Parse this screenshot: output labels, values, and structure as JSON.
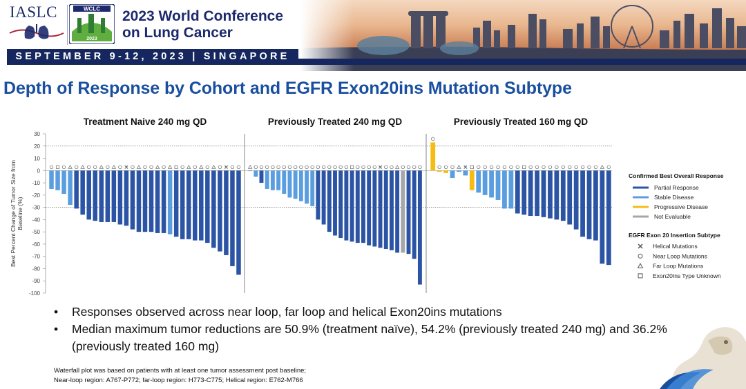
{
  "header": {
    "org": "IASLC",
    "conference_title_line1": "2023 World Conference",
    "conference_title_line2": "on Lung Cancer",
    "dates": "SEPTEMBER 9-12, 2023 | SINGAPORE",
    "wclc_logo_text": "WCLC",
    "wclc_logo_year": "2023"
  },
  "slide": {
    "title": "Depth of Response by Cohort and EGFR Exon20ins Mutation Subtype"
  },
  "colors": {
    "partial_response": "#2b54a4",
    "stable_disease": "#5a9ee0",
    "progressive_disease": "#f6bc14",
    "not_evaluable": "#a7a7a7",
    "title_blue": "#1a4fa0",
    "navy": "#15275e"
  },
  "chart_data": {
    "type": "bar",
    "ylabel": "Best Percent Change of Tumor Size from Baseline (%)",
    "ylim": [
      -100,
      30
    ],
    "yticks": [
      30,
      20,
      10,
      0,
      -10,
      -20,
      -30,
      -40,
      -50,
      -60,
      -70,
      -80,
      -90,
      -100
    ],
    "reference_lines": [
      20,
      -30
    ],
    "legend_position": "right",
    "legend": {
      "response_title": "Confirmed Best Overall Response",
      "response_items": [
        {
          "label": "Partial Response",
          "key": "PR"
        },
        {
          "label": "Stable Disease",
          "key": "SD"
        },
        {
          "label": "Progressive Disease",
          "key": "PD"
        },
        {
          "label": "Not Evaluable",
          "key": "NE"
        }
      ],
      "subtype_title": "EGFR Exon 20 Insertion Subtype",
      "subtype_items": [
        {
          "label": "Helical Mutations",
          "marker": "x"
        },
        {
          "label": "Near Loop Mutations",
          "marker": "o"
        },
        {
          "label": "Far Loop Mutations",
          "marker": "t"
        },
        {
          "label": "Exon20Ins Type Unknown",
          "marker": "s"
        }
      ]
    },
    "panels": [
      {
        "title": "Treatment Naive 240 mg QD",
        "values": [
          -15,
          -16,
          -19,
          -28,
          -31,
          -36,
          -40,
          -41,
          -42,
          -42,
          -42,
          -44,
          -45,
          -48,
          -50,
          -50,
          -50,
          -51,
          -51,
          -52,
          -54,
          -56,
          -56,
          -57,
          -57,
          -59,
          -63,
          -66,
          -69,
          -78,
          -85
        ],
        "responses": [
          "SD",
          "SD",
          "SD",
          "SD",
          "PR",
          "PR",
          "PR",
          "PR",
          "PR",
          "PR",
          "PR",
          "PR",
          "PR",
          "PR",
          "PR",
          "PR",
          "PR",
          "PR",
          "PR",
          "SD",
          "PR",
          "PR",
          "PR",
          "PR",
          "PR",
          "PR",
          "PR",
          "PR",
          "PR",
          "PR",
          "PR"
        ],
        "markers": [
          "o",
          "s",
          "o",
          "t",
          "o",
          "t",
          "o",
          "o",
          "t",
          "o",
          "t",
          "o",
          "x",
          "o",
          "t",
          "o",
          "o",
          "t",
          "o",
          "t",
          "s",
          "o",
          "t",
          "o",
          "t",
          "o",
          "t",
          "o",
          "x",
          "o",
          "o"
        ]
      },
      {
        "title": "Previously Treated 240 mg QD",
        "values": [
          0,
          -5,
          -10,
          -15,
          -16,
          -16,
          -19,
          -22,
          -23,
          -25,
          -27,
          -29,
          -40,
          -44,
          -50,
          -53,
          -55,
          -57,
          -58,
          -59,
          -59,
          -61,
          -62,
          -63,
          -64,
          -65,
          -67,
          -67,
          -68,
          -72,
          -93
        ],
        "responses": [
          "SD",
          "SD",
          "PR",
          "SD",
          "SD",
          "SD",
          "SD",
          "SD",
          "SD",
          "SD",
          "SD",
          "SD",
          "PR",
          "PR",
          "PR",
          "PR",
          "PR",
          "PR",
          "PR",
          "PR",
          "PR",
          "PR",
          "PR",
          "PR",
          "PR",
          "PR",
          "PR",
          "NE",
          "PR",
          "PR",
          "PR"
        ],
        "markers": [
          "t",
          "o",
          "o",
          "o",
          "o",
          "o",
          "o",
          "o",
          "o",
          "o",
          "o",
          "o",
          "o",
          "o",
          "o",
          "o",
          "o",
          "o",
          "s",
          "o",
          "o",
          "o",
          "o",
          "x",
          "o",
          "o",
          "t",
          "o",
          "o",
          "o",
          "o"
        ]
      },
      {
        "title": "Previously Treated 160 mg QD",
        "values": [
          23,
          -1,
          -2,
          -6,
          -1,
          -4,
          -16,
          -18,
          -20,
          -22,
          -24,
          -31,
          -31,
          -35,
          -36,
          -37,
          -37,
          -38,
          -39,
          -40,
          -41,
          -44,
          -48,
          -54,
          -56,
          -57,
          -76,
          -77
        ],
        "responses": [
          "PD",
          "PD",
          "PD",
          "SD",
          "SD",
          "SD",
          "PD",
          "SD",
          "SD",
          "SD",
          "SD",
          "SD",
          "SD",
          "PR",
          "PR",
          "PR",
          "PR",
          "PR",
          "PR",
          "PR",
          "PR",
          "PR",
          "PR",
          "PR",
          "PR",
          "PR",
          "PR",
          "PR"
        ],
        "markers": [
          "o",
          "o",
          "o",
          "o",
          "t",
          "x",
          "s",
          "o",
          "o",
          "o",
          "o",
          "o",
          "o",
          "o",
          "s",
          "o",
          "o",
          "o",
          "o",
          "o",
          "o",
          "o",
          "o",
          "o",
          "o",
          "o",
          "t",
          "o"
        ]
      }
    ]
  },
  "bullets": [
    "Responses observed across near loop, far loop and helical Exon20ins mutations",
    "Median maximum tumor reductions are 50.9% (treatment naïve), 54.2% (previously treated 240 mg) and 36.2% (previously treated 160 mg)"
  ],
  "footnote_line1": "Waterfall plot was based on patients with at least one tumor assessment post baseline;",
  "footnote_line2": "Near-loop region: A767-P772; far-loop region: H773-C775; Helical region: E762-M766"
}
